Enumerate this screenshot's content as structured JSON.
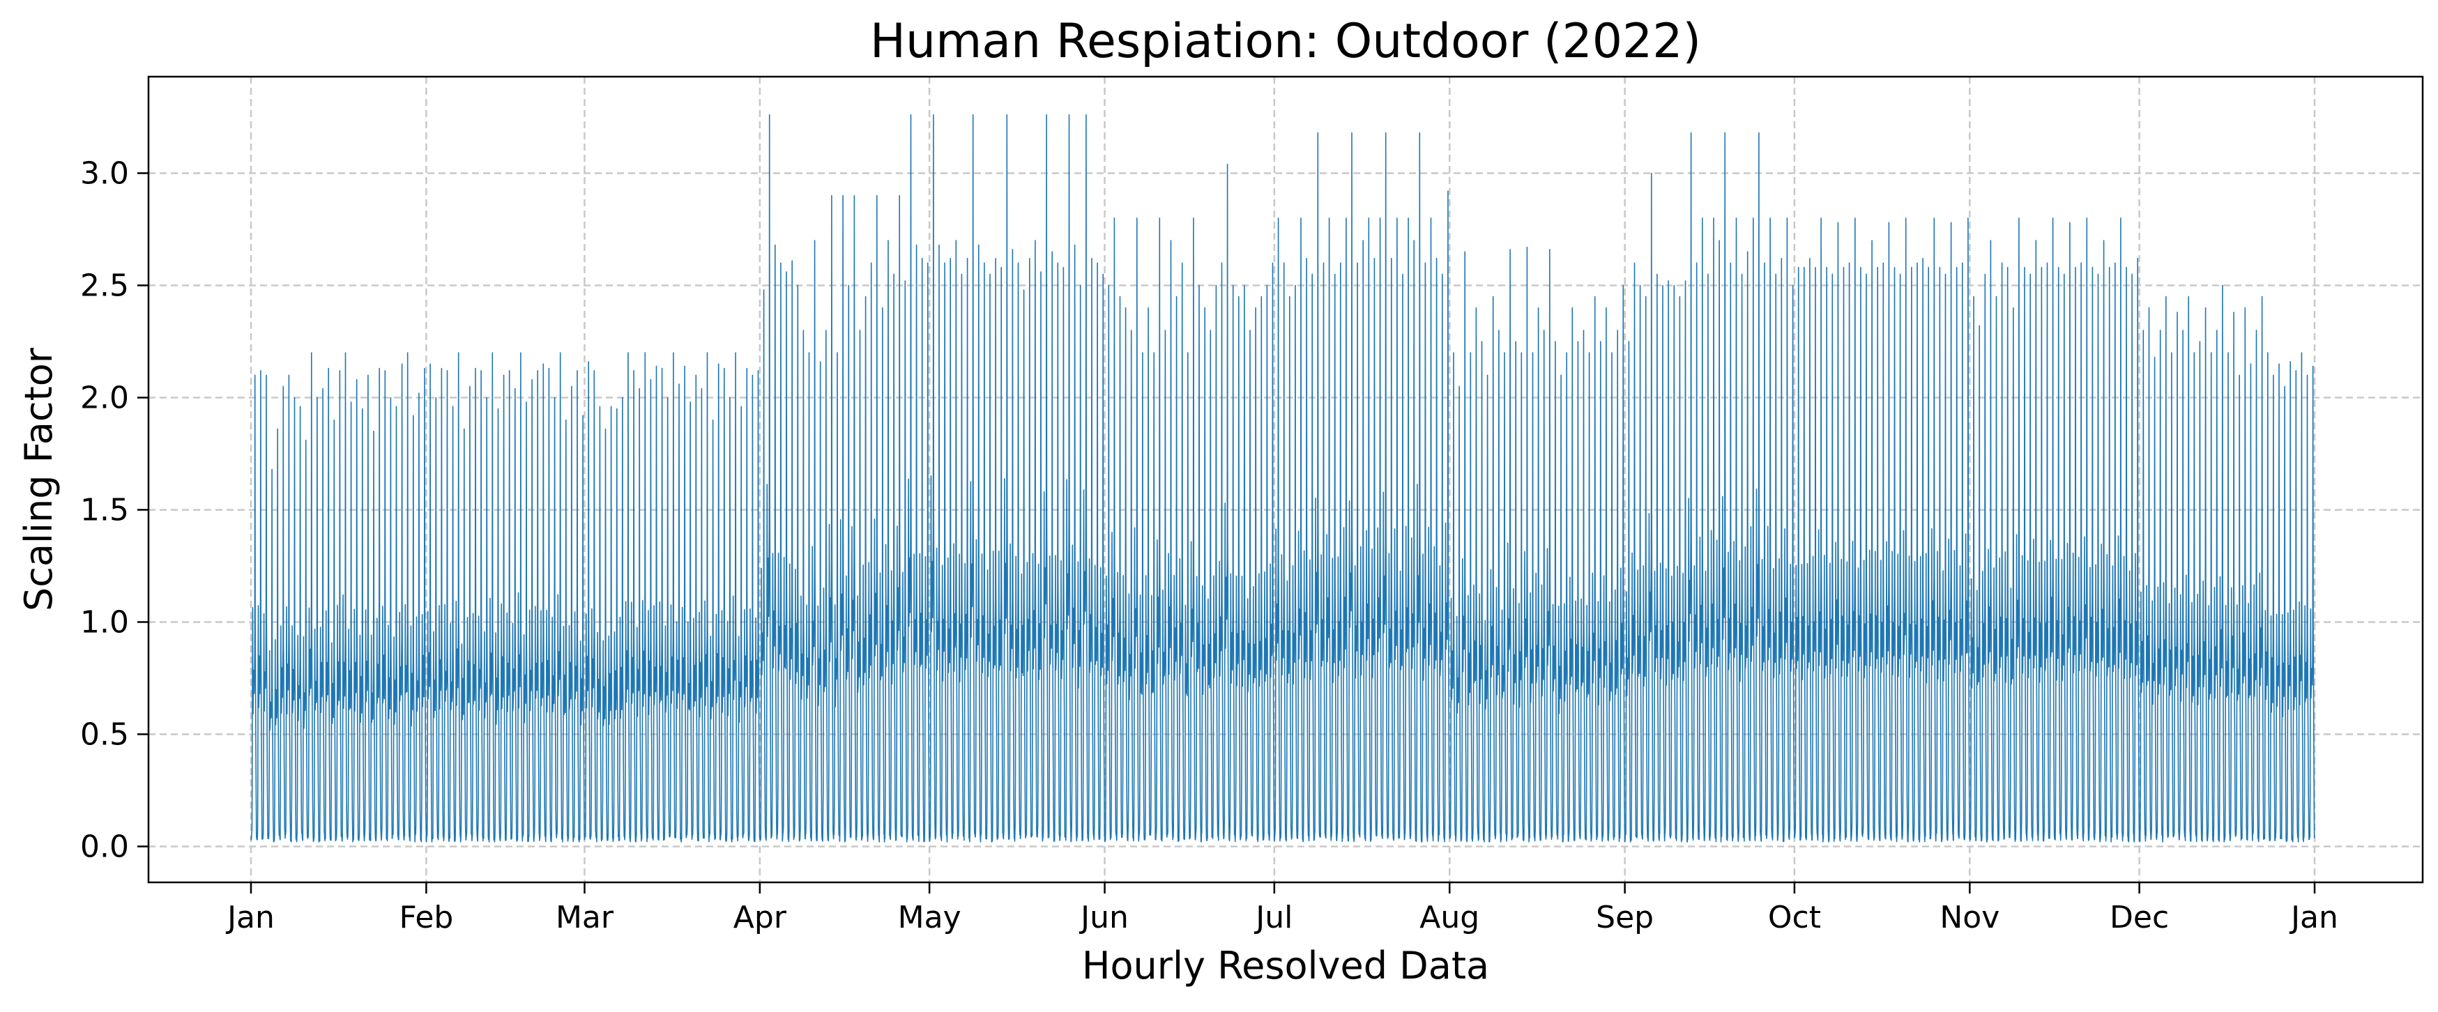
{
  "chart_data": {
    "type": "line",
    "title": "Human Respiation: Outdoor (2022)",
    "xlabel": "Hourly Resolved Data",
    "ylabel": "Scaling Factor",
    "x_range": [
      "2022-01-01",
      "2023-01-01"
    ],
    "ylim": [
      -0.16,
      3.43
    ],
    "grid": true,
    "x_ticks": [
      "Jan",
      "Feb",
      "Mar",
      "Apr",
      "May",
      "Jun",
      "Jul",
      "Aug",
      "Sep",
      "Oct",
      "Nov",
      "Dec",
      "Jan"
    ],
    "x_tick_dates": [
      "2022-01-01",
      "2022-02-01",
      "2022-03-01",
      "2022-04-01",
      "2022-05-01",
      "2022-06-01",
      "2022-07-01",
      "2022-08-01",
      "2022-09-01",
      "2022-10-01",
      "2022-11-01",
      "2022-12-01",
      "2023-01-01"
    ],
    "y_ticks": [
      0.0,
      0.5,
      1.0,
      1.5,
      2.0,
      2.5,
      3.0
    ],
    "y_tick_labels": [
      "0.0",
      "0.5",
      "1.0",
      "1.5",
      "2.0",
      "2.5",
      "3.0"
    ],
    "series": [
      {
        "color": "#1f77b4",
        "resolution": "hourly",
        "monthly_daily_peaks": [
          {
            "month": "Jan",
            "values": [
              2.1,
              2.12,
              2.1,
              1.68,
              1.86,
              2.05,
              2.1,
              2.0,
              1.96,
              1.81,
              2.2,
              2.0,
              2.04,
              2.13,
              1.9,
              2.12,
              2.2,
              1.98,
              2.08,
              1.95,
              2.1,
              1.85,
              2.13,
              2.12,
              2.0,
              1.96,
              2.15,
              2.2,
              1.92,
              2.02,
              2.13
            ]
          },
          {
            "month": "Feb",
            "values": [
              2.15,
              2.0,
              2.13,
              2.12,
              1.96,
              2.2,
              1.86,
              2.05,
              2.13,
              2.12,
              2.0,
              2.2,
              1.95,
              2.1,
              2.12,
              2.04,
              2.2,
              1.98,
              2.08,
              2.12,
              2.15,
              2.13,
              2.0,
              2.2,
              1.9,
              2.05,
              2.12,
              1.92
            ]
          },
          {
            "month": "Mar",
            "values": [
              2.16,
              2.12,
              1.96,
              1.86,
              1.96,
              1.95,
              2.0,
              2.2,
              2.12,
              2.04,
              2.2,
              2.08,
              2.14,
              2.13,
              2.0,
              2.2,
              2.06,
              2.14,
              1.98,
              2.1,
              2.04,
              2.2,
              1.9,
              2.15,
              2.13,
              2.0,
              2.2,
              1.96,
              2.13,
              2.1,
              2.12
            ]
          },
          {
            "month": "Apr",
            "values": [
              2.48,
              3.26,
              2.68,
              2.6,
              2.56,
              2.61,
              2.5,
              2.3,
              2.2,
              2.7,
              2.16,
              2.3,
              2.9,
              2.2,
              2.9,
              2.5,
              2.9,
              2.3,
              2.45,
              2.6,
              2.9,
              2.4,
              2.7,
              2.55,
              2.9,
              2.52,
              3.26,
              2.68,
              2.62,
              2.6
            ]
          },
          {
            "month": "May",
            "values": [
              3.26,
              2.68,
              2.6,
              2.62,
              2.7,
              2.55,
              2.62,
              3.26,
              2.68,
              2.6,
              2.55,
              2.62,
              2.58,
              3.26,
              2.66,
              2.6,
              2.48,
              2.62,
              2.7,
              2.56,
              3.26,
              2.65,
              2.6,
              2.58,
              3.26,
              2.68,
              2.5,
              3.26,
              2.62,
              2.6,
              2.55
            ]
          },
          {
            "month": "Jun",
            "values": [
              2.5,
              2.8,
              2.45,
              2.4,
              2.3,
              2.8,
              2.2,
              2.4,
              2.2,
              2.8,
              2.3,
              2.7,
              2.45,
              2.6,
              2.2,
              2.8,
              2.5,
              2.4,
              2.3,
              2.5,
              2.6,
              3.04,
              2.5,
              2.45,
              2.5,
              2.3,
              2.4,
              2.45,
              2.5,
              2.6
            ]
          },
          {
            "month": "Jul",
            "values": [
              2.8,
              2.6,
              2.45,
              2.5,
              2.8,
              2.62,
              2.55,
              3.18,
              2.6,
              2.8,
              2.55,
              2.6,
              2.8,
              3.18,
              2.6,
              2.7,
              2.8,
              2.62,
              2.8,
              3.18,
              2.62,
              2.8,
              2.55,
              2.8,
              2.7,
              3.18,
              2.6,
              2.8,
              2.62,
              2.55,
              2.92
            ]
          },
          {
            "month": "Aug",
            "values": [
              2.2,
              2.05,
              2.65,
              2.2,
              2.4,
              2.25,
              2.1,
              2.45,
              2.3,
              2.2,
              2.66,
              2.25,
              2.2,
              2.67,
              2.2,
              2.4,
              2.3,
              2.66,
              2.25,
              2.1,
              2.2,
              2.4,
              2.25,
              2.3,
              2.2,
              2.45,
              2.25,
              2.4,
              2.2,
              2.3,
              2.5
            ]
          },
          {
            "month": "Sep",
            "values": [
              2.25,
              2.6,
              2.5,
              2.45,
              3.0,
              2.55,
              2.5,
              2.52,
              2.5,
              2.45,
              2.52,
              3.18,
              2.6,
              2.8,
              2.55,
              2.8,
              2.7,
              3.18,
              2.6,
              2.8,
              2.55,
              2.65,
              2.8,
              3.18,
              2.6,
              2.8,
              2.55,
              2.62,
              2.8,
              2.5
            ]
          },
          {
            "month": "Oct",
            "values": [
              2.58,
              2.58,
              2.62,
              2.58,
              2.8,
              2.58,
              2.55,
              2.78,
              2.58,
              2.6,
              2.8,
              2.58,
              2.55,
              2.7,
              2.58,
              2.6,
              2.78,
              2.58,
              2.55,
              2.8,
              2.58,
              2.6,
              2.62,
              2.58,
              2.8,
              2.58,
              2.55,
              2.78,
              2.58,
              2.6,
              2.8
            ]
          },
          {
            "month": "Nov",
            "values": [
              2.45,
              2.32,
              2.55,
              2.7,
              2.45,
              2.6,
              2.58,
              2.4,
              2.8,
              2.58,
              2.55,
              2.7,
              2.58,
              2.6,
              2.8,
              2.58,
              2.55,
              2.78,
              2.58,
              2.6,
              2.8,
              2.58,
              2.55,
              2.7,
              2.58,
              2.6,
              2.8,
              2.58,
              2.55,
              2.62
            ]
          },
          {
            "month": "Dec",
            "values": [
              2.3,
              2.4,
              2.18,
              2.3,
              2.45,
              2.2,
              2.38,
              2.3,
              2.45,
              2.2,
              2.25,
              2.4,
              2.2,
              2.3,
              2.5,
              2.2,
              2.38,
              2.1,
              2.4,
              2.15,
              2.3,
              2.45,
              2.2,
              2.1,
              2.15,
              2.05,
              2.16,
              2.12,
              2.2,
              2.1,
              2.14
            ]
          }
        ],
        "typical_overnight_minimum": 0.02
      }
    ]
  }
}
